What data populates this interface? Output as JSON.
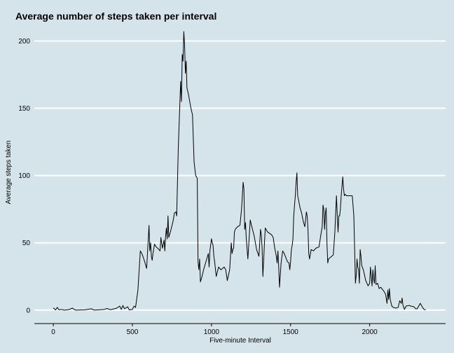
{
  "chart_data": {
    "type": "line",
    "title": "Average number of steps taken per interval",
    "xlabel": "Five-minute Interval",
    "ylabel": "Average steps taken",
    "xlim": [
      -120,
      2480
    ],
    "ylim": [
      -10,
      207
    ],
    "xticks": [
      0,
      500,
      1000,
      1500,
      2000
    ],
    "yticks": [
      0,
      50,
      100,
      150,
      200
    ],
    "grid": "horizontal",
    "series": [
      {
        "values": [
          [
            0,
            1.7
          ],
          [
            15,
            0.1
          ],
          [
            25,
            2.1
          ],
          [
            35,
            0.3
          ],
          [
            50,
            0.5
          ],
          [
            70,
            0
          ],
          [
            100,
            0.4
          ],
          [
            120,
            1.5
          ],
          [
            140,
            0
          ],
          [
            200,
            0.2
          ],
          [
            240,
            1.0
          ],
          [
            260,
            0
          ],
          [
            320,
            0.5
          ],
          [
            340,
            1.2
          ],
          [
            360,
            0.3
          ],
          [
            400,
            1.4
          ],
          [
            420,
            3.0
          ],
          [
            430,
            0.5
          ],
          [
            440,
            3.5
          ],
          [
            450,
            1.0
          ],
          [
            470,
            2.5
          ],
          [
            480,
            0.2
          ],
          [
            500,
            0.5
          ],
          [
            510,
            3.0
          ],
          [
            520,
            2.0
          ],
          [
            535,
            15
          ],
          [
            550,
            44
          ],
          [
            560,
            42
          ],
          [
            575,
            37
          ],
          [
            590,
            31
          ],
          [
            600,
            52
          ],
          [
            605,
            63
          ],
          [
            610,
            44
          ],
          [
            615,
            50
          ],
          [
            620,
            40
          ],
          [
            625,
            37
          ],
          [
            630,
            42
          ],
          [
            640,
            49
          ],
          [
            650,
            47
          ],
          [
            660,
            46
          ],
          [
            675,
            44
          ],
          [
            680,
            54
          ],
          [
            685,
            50
          ],
          [
            690,
            46
          ],
          [
            700,
            52
          ],
          [
            705,
            44
          ],
          [
            710,
            55
          ],
          [
            715,
            61
          ],
          [
            720,
            53
          ],
          [
            725,
            70
          ],
          [
            730,
            54
          ],
          [
            740,
            58
          ],
          [
            755,
            65
          ],
          [
            760,
            68
          ],
          [
            765,
            72
          ],
          [
            775,
            73
          ],
          [
            780,
            70
          ],
          [
            790,
            120
          ],
          [
            805,
            170
          ],
          [
            810,
            155
          ],
          [
            815,
            190
          ],
          [
            820,
            185
          ],
          [
            825,
            207
          ],
          [
            830,
            197
          ],
          [
            835,
            176
          ],
          [
            840,
            185
          ],
          [
            845,
            165
          ],
          [
            855,
            160
          ],
          [
            870,
            150
          ],
          [
            880,
            145
          ],
          [
            890,
            110
          ],
          [
            900,
            100
          ],
          [
            910,
            98
          ],
          [
            915,
            36
          ],
          [
            920,
            30
          ],
          [
            925,
            38
          ],
          [
            930,
            21
          ],
          [
            940,
            25
          ],
          [
            950,
            30
          ],
          [
            970,
            38
          ],
          [
            980,
            42
          ],
          [
            985,
            32
          ],
          [
            990,
            44
          ],
          [
            1000,
            53
          ],
          [
            1005,
            50
          ],
          [
            1010,
            48
          ],
          [
            1015,
            40
          ],
          [
            1020,
            36
          ],
          [
            1030,
            25
          ],
          [
            1045,
            32
          ],
          [
            1060,
            30
          ],
          [
            1080,
            32
          ],
          [
            1090,
            30
          ],
          [
            1100,
            22
          ],
          [
            1115,
            30
          ],
          [
            1125,
            50
          ],
          [
            1130,
            42
          ],
          [
            1135,
            45
          ],
          [
            1140,
            46
          ],
          [
            1145,
            58
          ],
          [
            1150,
            60
          ],
          [
            1165,
            62
          ],
          [
            1180,
            63
          ],
          [
            1190,
            75
          ],
          [
            1200,
            95
          ],
          [
            1205,
            90
          ],
          [
            1210,
            60
          ],
          [
            1215,
            65
          ],
          [
            1220,
            53
          ],
          [
            1230,
            38
          ],
          [
            1245,
            67
          ],
          [
            1255,
            62
          ],
          [
            1270,
            55
          ],
          [
            1285,
            45
          ],
          [
            1300,
            40
          ],
          [
            1310,
            60
          ],
          [
            1315,
            56
          ],
          [
            1320,
            46
          ],
          [
            1325,
            25
          ],
          [
            1335,
            50
          ],
          [
            1340,
            61
          ],
          [
            1345,
            60
          ],
          [
            1355,
            58
          ],
          [
            1380,
            56
          ],
          [
            1390,
            54
          ],
          [
            1400,
            46
          ],
          [
            1410,
            40
          ],
          [
            1415,
            35
          ],
          [
            1420,
            44
          ],
          [
            1425,
            32
          ],
          [
            1430,
            17
          ],
          [
            1440,
            35
          ],
          [
            1450,
            44
          ],
          [
            1460,
            42
          ],
          [
            1480,
            36
          ],
          [
            1490,
            35
          ],
          [
            1495,
            30
          ],
          [
            1500,
            36
          ],
          [
            1505,
            45
          ],
          [
            1510,
            48
          ],
          [
            1515,
            53
          ],
          [
            1520,
            70
          ],
          [
            1525,
            78
          ],
          [
            1530,
            85
          ],
          [
            1535,
            95
          ],
          [
            1540,
            102
          ],
          [
            1545,
            85
          ],
          [
            1550,
            82
          ],
          [
            1560,
            76
          ],
          [
            1570,
            72
          ],
          [
            1580,
            66
          ],
          [
            1590,
            62
          ],
          [
            1600,
            73
          ],
          [
            1605,
            70
          ],
          [
            1610,
            60
          ],
          [
            1615,
            42
          ],
          [
            1620,
            38
          ],
          [
            1630,
            45
          ],
          [
            1645,
            44
          ],
          [
            1660,
            46
          ],
          [
            1680,
            47
          ],
          [
            1690,
            55
          ],
          [
            1700,
            62
          ],
          [
            1705,
            78
          ],
          [
            1710,
            75
          ],
          [
            1715,
            60
          ],
          [
            1720,
            72
          ],
          [
            1725,
            76
          ],
          [
            1730,
            50
          ],
          [
            1735,
            35
          ],
          [
            1740,
            38
          ],
          [
            1760,
            40
          ],
          [
            1770,
            41
          ],
          [
            1780,
            58
          ],
          [
            1790,
            85
          ],
          [
            1795,
            71
          ],
          [
            1800,
            58
          ],
          [
            1805,
            70
          ],
          [
            1810,
            70
          ],
          [
            1815,
            75
          ],
          [
            1820,
            85
          ],
          [
            1825,
            92
          ],
          [
            1830,
            99
          ],
          [
            1835,
            90
          ],
          [
            1840,
            85
          ],
          [
            1845,
            86
          ],
          [
            1855,
            85
          ],
          [
            1875,
            85
          ],
          [
            1890,
            85
          ],
          [
            1900,
            70
          ],
          [
            1905,
            45
          ],
          [
            1910,
            20
          ],
          [
            1915,
            26
          ],
          [
            1920,
            38
          ],
          [
            1925,
            32
          ],
          [
            1930,
            30
          ],
          [
            1935,
            20
          ],
          [
            1940,
            45
          ],
          [
            1945,
            40
          ],
          [
            1950,
            33
          ],
          [
            1960,
            30
          ],
          [
            1975,
            22
          ],
          [
            1990,
            18
          ],
          [
            2000,
            20
          ],
          [
            2005,
            32
          ],
          [
            2010,
            25
          ],
          [
            2015,
            18
          ],
          [
            2020,
            30
          ],
          [
            2025,
            23
          ],
          [
            2030,
            20
          ],
          [
            2035,
            33
          ],
          [
            2040,
            19
          ],
          [
            2050,
            20
          ],
          [
            2060,
            16
          ],
          [
            2070,
            17
          ],
          [
            2090,
            14
          ],
          [
            2100,
            12
          ],
          [
            2110,
            5
          ],
          [
            2115,
            15
          ],
          [
            2120,
            8
          ],
          [
            2125,
            16
          ],
          [
            2130,
            8
          ],
          [
            2140,
            3
          ],
          [
            2150,
            2
          ],
          [
            2165,
            1.5
          ],
          [
            2180,
            2
          ],
          [
            2190,
            7
          ],
          [
            2200,
            5
          ],
          [
            2205,
            9
          ],
          [
            2210,
            4
          ],
          [
            2220,
            0.5
          ],
          [
            2230,
            3
          ],
          [
            2250,
            3.5
          ],
          [
            2260,
            3
          ],
          [
            2280,
            2.5
          ],
          [
            2290,
            1
          ],
          [
            2300,
            1
          ],
          [
            2310,
            3
          ],
          [
            2320,
            5
          ],
          [
            2330,
            3
          ],
          [
            2340,
            1
          ],
          [
            2345,
            0.5
          ],
          [
            2355,
            0.2
          ]
        ]
      }
    ]
  }
}
